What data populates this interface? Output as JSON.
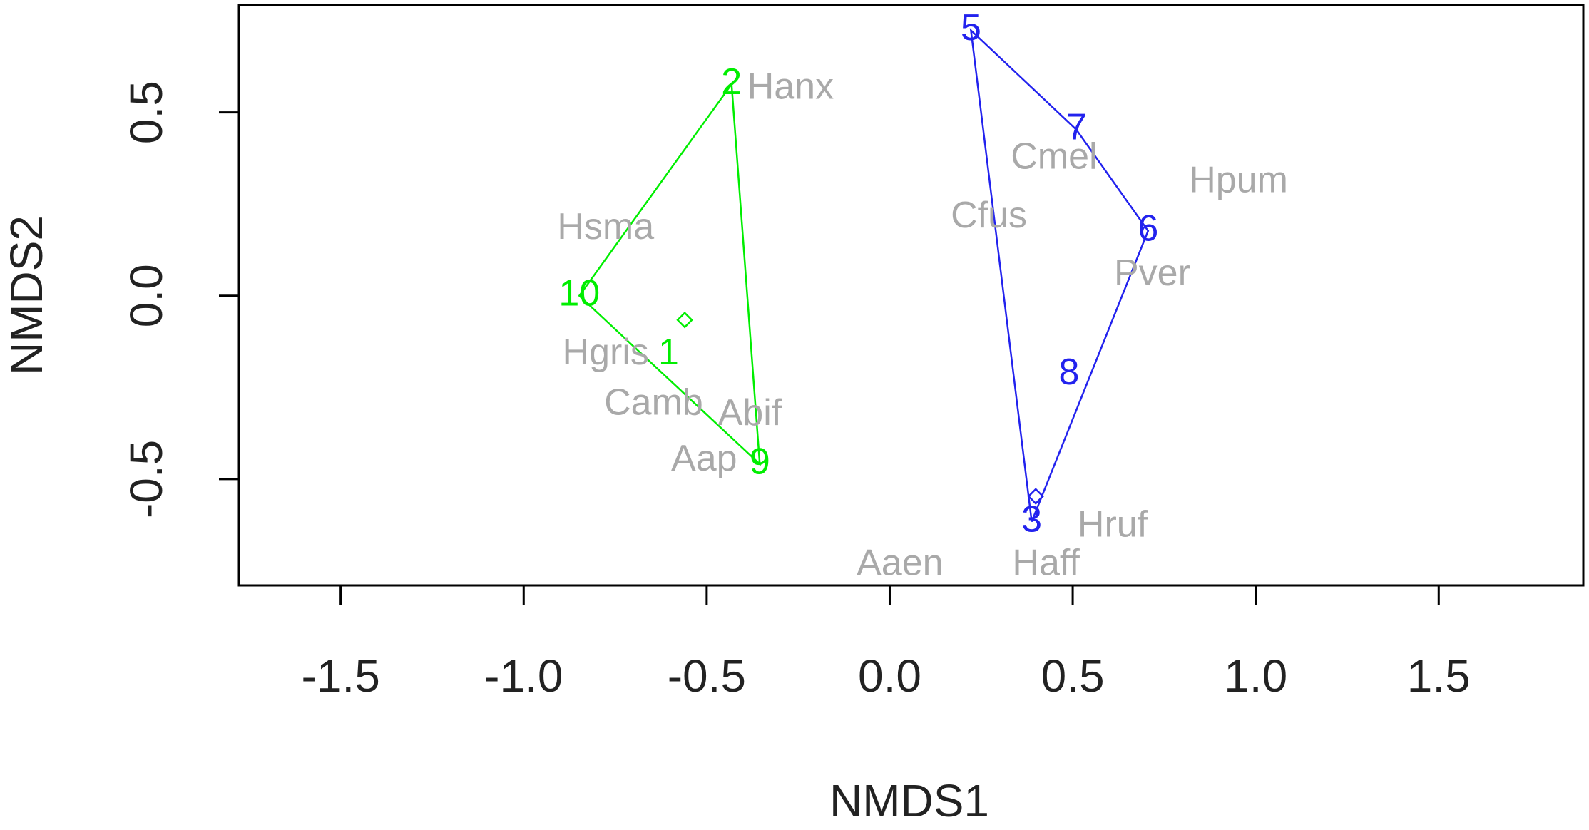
{
  "chart_data": {
    "type": "scatter",
    "xlabel": "NMDS1",
    "ylabel": "NMDS2",
    "xlim": [
      -1.778,
      1.895
    ],
    "ylim": [
      -0.79,
      0.793
    ],
    "xticks": [
      -1.5,
      {
        "value": -1,
        "label": "-1.0"
      },
      -0.5,
      {
        "value": 0,
        "label": "0.0"
      },
      0.5,
      {
        "value": 1,
        "label": "1.0"
      },
      1.5
    ],
    "yticks": [
      -0.5,
      {
        "value": 0,
        "label": "0.0"
      },
      0.5
    ],
    "series": [
      {
        "color": "#00ee00",
        "hull": true,
        "labels": [
          "2",
          "10",
          "1",
          "9"
        ],
        "x": [
          -0.432,
          -0.848,
          -0.604,
          -0.355
        ],
        "y": [
          0.577,
          0.0,
          -0.16,
          -0.459
        ]
      },
      {
        "color": "#2222ee",
        "hull": true,
        "labels": [
          "5",
          "7",
          "6",
          "8",
          "3"
        ],
        "x": [
          0.222,
          0.51,
          0.706,
          0.49,
          0.388
        ],
        "y": [
          0.724,
          0.453,
          0.177,
          -0.215,
          -0.616
        ]
      },
      {
        "color": "#a9a9a9",
        "hull": false,
        "labels": [
          "Hanx",
          "Cmel",
          "Hpum",
          "Hsma",
          "Cfus",
          "Pver",
          "Hgris",
          "Camb",
          "Abif",
          "Aap",
          "Hruf",
          "Haff",
          "Aaen"
        ],
        "x": [
          -0.271,
          0.449,
          0.953,
          -0.776,
          0.271,
          0.717,
          -0.776,
          -0.645,
          -0.382,
          -0.507,
          0.609,
          0.427,
          0.028
        ],
        "y": [
          0.564,
          0.373,
          0.309,
          0.182,
          0.213,
          0.055,
          -0.16,
          -0.298,
          -0.326,
          -0.45,
          -0.63,
          -0.735,
          -0.735
        ]
      }
    ],
    "centroids": {
      "colors": [
        "#00ee00",
        "#2222ee"
      ],
      "x": [
        -0.56,
        0.399
      ],
      "y": [
        -0.066,
        -0.547
      ]
    }
  }
}
